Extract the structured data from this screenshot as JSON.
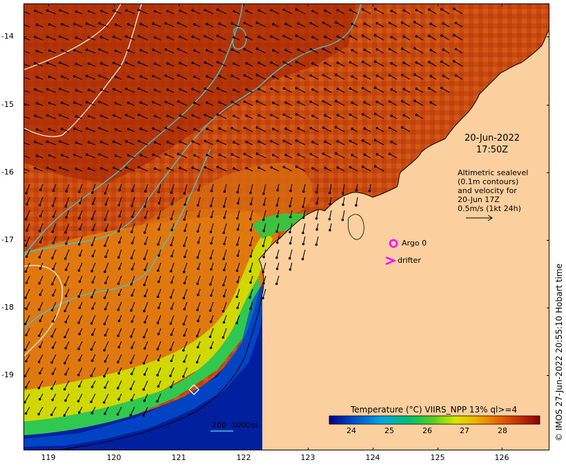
{
  "map": {
    "y_axis_labels": [
      "-14",
      "-15",
      "-16",
      "-17",
      "-18",
      "-19"
    ],
    "x_axis_labels": [
      "119",
      "120",
      "121",
      "122",
      "123",
      "124",
      "125",
      "126"
    ],
    "date_line1": "20-Jun-2022",
    "date_line2": "17:50Z",
    "legend_lines": [
      "Altimetric sealevel",
      "(0.1m contours)",
      "and velocity for",
      "20-Jun 17Z",
      "0.5m/s (1kt 24h)"
    ],
    "argo_label": "Argo 0",
    "drifter_label": "drifter",
    "bathy_label": "200  1000m",
    "credit": "© IMOS 27-Jun-2022 20:55:10 Hobart time",
    "colorbar": {
      "title": "Temperature (°C) VIIRS_NPP 13% ql>=4",
      "ticks": [
        "24",
        "25",
        "26",
        "27",
        "28"
      ],
      "range": [
        23.4,
        28.6
      ]
    },
    "colors": {
      "land": "#fccf9e",
      "argo_marker": "#ff00ff",
      "drifter_marker": "#ff00ff",
      "contour_200m": "#40c8d0",
      "sealevel_contour": "#ffffff",
      "velocity_arrow": "#000000"
    }
  }
}
